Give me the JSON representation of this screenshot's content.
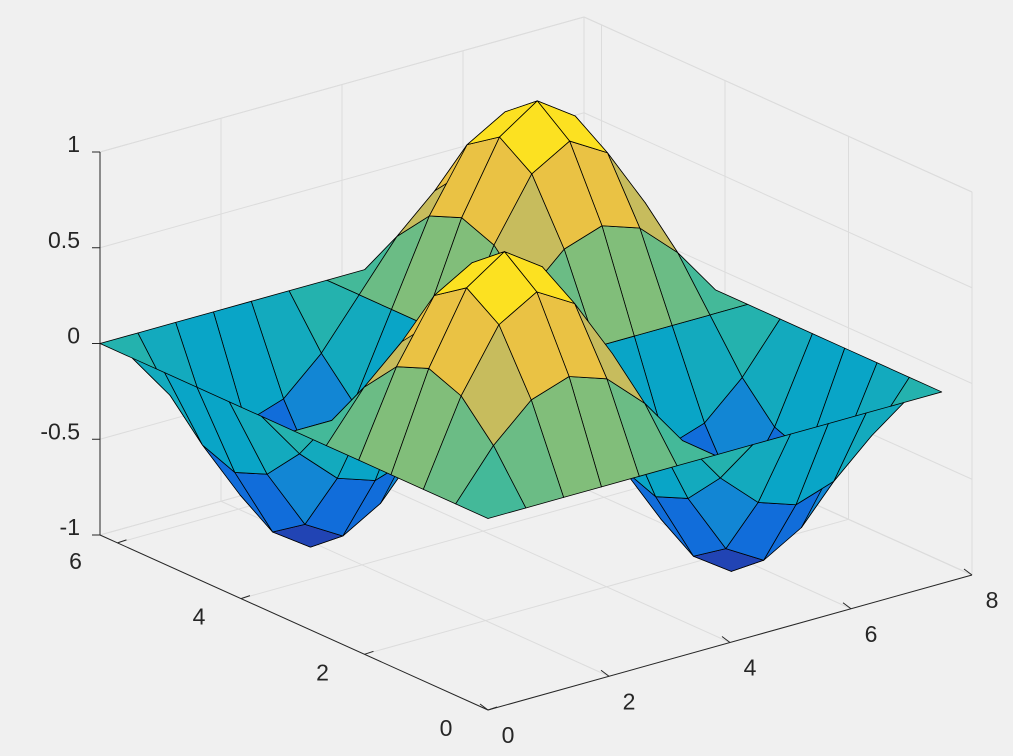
{
  "chart_data": {
    "type": "surface",
    "x": [
      0,
      0.625,
      1.25,
      1.875,
      2.5,
      3.125,
      3.75,
      4.375,
      5,
      5.625,
      6.25,
      6.875,
      7.5
    ],
    "y": [
      0,
      0.524,
      1.047,
      1.571,
      2.094,
      2.618,
      3.142,
      3.665,
      4.189,
      4.712,
      5.236,
      5.76,
      6.283
    ],
    "z": [
      [
        0,
        0,
        0,
        0,
        0,
        0,
        0,
        0,
        0,
        0,
        0,
        0,
        0
      ],
      [
        0,
        0.25,
        0.433,
        0.5,
        0.433,
        0.25,
        0,
        -0.25,
        -0.433,
        -0.5,
        -0.433,
        -0.25,
        0
      ],
      [
        0,
        0.433,
        0.75,
        0.866,
        0.75,
        0.433,
        0,
        -0.433,
        -0.75,
        -0.866,
        -0.75,
        -0.433,
        0
      ],
      [
        0,
        0.5,
        0.866,
        1,
        0.866,
        0.5,
        0,
        -0.5,
        -0.866,
        -1,
        -0.866,
        -0.5,
        0
      ],
      [
        0,
        0.433,
        0.75,
        0.866,
        0.75,
        0.433,
        0,
        -0.433,
        -0.75,
        -0.866,
        -0.75,
        -0.433,
        0
      ],
      [
        0,
        0.25,
        0.433,
        0.5,
        0.433,
        0.25,
        0,
        -0.25,
        -0.433,
        -0.5,
        -0.433,
        -0.25,
        0
      ],
      [
        0,
        0,
        0,
        0,
        0,
        0,
        0,
        0,
        0,
        0,
        0,
        0,
        0
      ],
      [
        0,
        -0.25,
        -0.433,
        -0.5,
        -0.433,
        -0.25,
        0,
        0.25,
        0.433,
        0.5,
        0.433,
        0.25,
        0
      ],
      [
        0,
        -0.433,
        -0.75,
        -0.866,
        -0.75,
        -0.433,
        0,
        0.433,
        0.75,
        0.866,
        0.75,
        0.433,
        0
      ],
      [
        0,
        -0.5,
        -0.866,
        -1,
        -0.866,
        -0.5,
        0,
        0.5,
        0.866,
        1,
        0.866,
        0.5,
        0
      ],
      [
        0,
        -0.433,
        -0.75,
        -0.866,
        -0.75,
        -0.433,
        0,
        0.433,
        0.75,
        0.866,
        0.75,
        0.433,
        0
      ],
      [
        0,
        -0.25,
        -0.433,
        -0.5,
        -0.433,
        -0.25,
        0,
        0.25,
        0.433,
        0.5,
        0.433,
        0.25,
        0
      ],
      [
        0,
        0,
        0,
        0,
        0,
        0,
        0,
        0,
        0,
        0,
        0,
        0,
        0
      ]
    ],
    "xlim": [
      0,
      8
    ],
    "ylim": [
      0,
      6.283
    ],
    "zlim": [
      -1,
      1
    ],
    "xticks": [
      0,
      2,
      4,
      6,
      8
    ],
    "yticks": [
      0,
      2,
      4,
      6
    ],
    "zticks": [
      -1,
      -0.5,
      0,
      0.5,
      1
    ],
    "grid": true,
    "edge_color": "#000000",
    "colormap": [
      "#352a87",
      "#0f5cdd",
      "#1481d6",
      "#06a4ca",
      "#2eb7a4",
      "#87bf77",
      "#d1bb59",
      "#fec832",
      "#f9fb0e"
    ]
  }
}
